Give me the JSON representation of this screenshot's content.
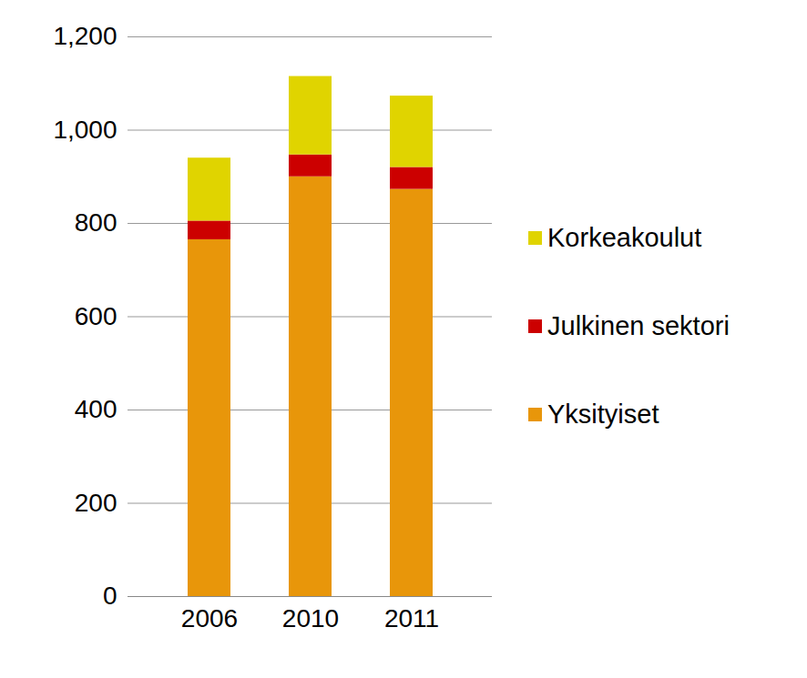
{
  "chart_data": {
    "type": "bar",
    "stacked": true,
    "legend": "right",
    "grid": true,
    "categories": [
      "2006",
      "2010",
      "2011"
    ],
    "series": [
      {
        "name": "Yksityiset",
        "color": "#e8960a",
        "values": [
          765,
          900,
          873
        ]
      },
      {
        "name": "Julkinen sektori",
        "color": "#cc0000",
        "values": [
          40,
          47,
          47
        ]
      },
      {
        "name": "Korkeakoulut",
        "color": "#e0d400",
        "values": [
          135,
          168,
          153
        ]
      }
    ],
    "ylim": [
      0,
      1200
    ],
    "yticks": [
      0,
      200,
      400,
      600,
      800,
      1000,
      1200
    ]
  }
}
